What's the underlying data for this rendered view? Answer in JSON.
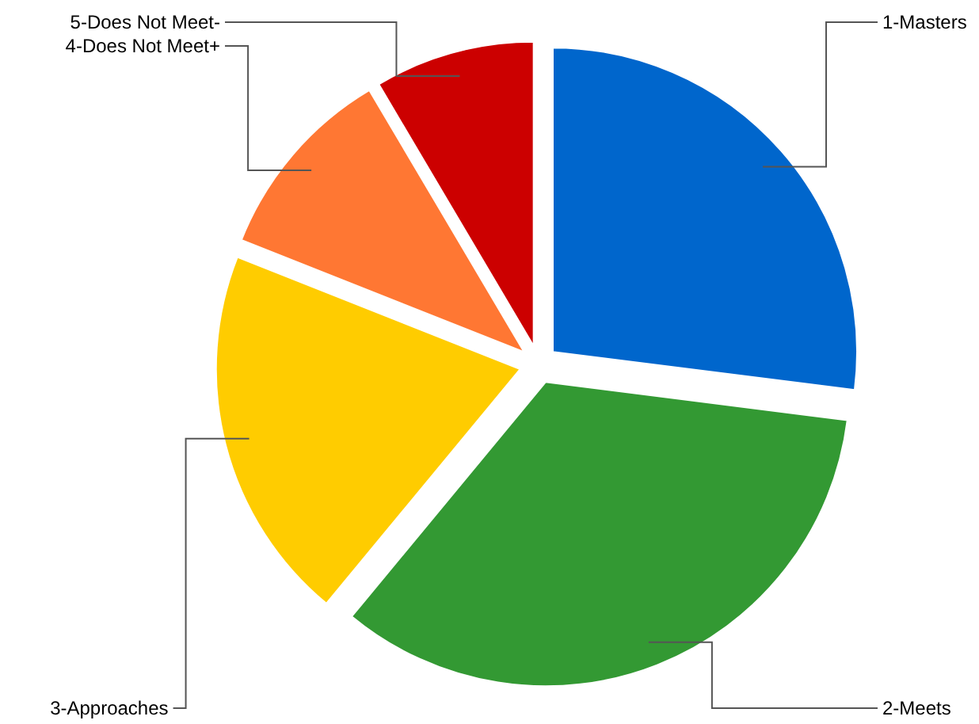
{
  "chart_data": {
    "type": "pie",
    "categories": [
      "1-Masters",
      "2-Meets",
      "3-Approaches",
      "4-Does Not Meet+",
      "5-Does Not Meet-"
    ],
    "values": [
      27,
      34,
      20,
      10.5,
      8.5
    ],
    "colors": [
      "#0066cc",
      "#339933",
      "#ffcc00",
      "#ff7733",
      "#cc0000"
    ]
  }
}
